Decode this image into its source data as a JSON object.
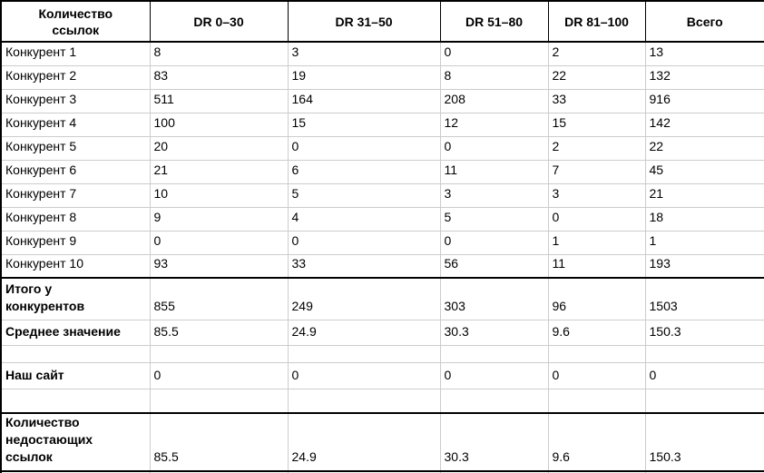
{
  "colors": {
    "grid": "#cccccc",
    "border": "#000000",
    "text": "#000000",
    "background": "#ffffff"
  },
  "table": {
    "header": {
      "first_column_lines": [
        "Количество",
        "ссылок"
      ],
      "columns": [
        "DR 0–30",
        "DR 31–50",
        "DR 51–80",
        "DR 81–100",
        "Всего"
      ]
    },
    "rows": [
      {
        "kind": "data",
        "label_lines": [
          "Конкурент 1"
        ],
        "values": [
          "8",
          "3",
          "0",
          "2",
          "13"
        ]
      },
      {
        "kind": "data",
        "label_lines": [
          "Конкурент 2"
        ],
        "values": [
          "83",
          "19",
          "8",
          "22",
          "132"
        ]
      },
      {
        "kind": "data",
        "label_lines": [
          "Конкурент 3"
        ],
        "values": [
          "511",
          "164",
          "208",
          "33",
          "916"
        ]
      },
      {
        "kind": "data",
        "label_lines": [
          "Конкурент 4"
        ],
        "values": [
          "100",
          "15",
          "12",
          "15",
          "142"
        ]
      },
      {
        "kind": "data",
        "label_lines": [
          "Конкурент 5"
        ],
        "values": [
          "20",
          "0",
          "0",
          "2",
          "22"
        ]
      },
      {
        "kind": "data",
        "label_lines": [
          "Конкурент 6"
        ],
        "values": [
          "21",
          "6",
          "11",
          "7",
          "45"
        ]
      },
      {
        "kind": "data",
        "label_lines": [
          "Конкурент 7"
        ],
        "values": [
          "10",
          "5",
          "3",
          "3",
          "21"
        ]
      },
      {
        "kind": "data",
        "label_lines": [
          "Конкурент 8"
        ],
        "values": [
          "9",
          "4",
          "5",
          "0",
          "18"
        ]
      },
      {
        "kind": "data",
        "label_lines": [
          "Конкурент 9"
        ],
        "values": [
          "0",
          "0",
          "0",
          "1",
          "1"
        ]
      },
      {
        "kind": "data",
        "label_lines": [
          "Конкурент 10"
        ],
        "values": [
          "93",
          "33",
          "56",
          "11",
          "193"
        ]
      },
      {
        "kind": "total",
        "label_lines": [
          "Итого у",
          "конкурентов"
        ],
        "values": [
          "855",
          "249",
          "303",
          "96",
          "1503"
        ]
      },
      {
        "kind": "average",
        "label_lines": [
          "Среднее значение"
        ],
        "values": [
          "85.5",
          "24.9",
          "30.3",
          "9.6",
          "150.3"
        ]
      },
      {
        "kind": "spacer",
        "label_lines": [],
        "values": [
          "",
          "",
          "",
          "",
          ""
        ]
      },
      {
        "kind": "oursite",
        "label_lines": [
          "Наш сайт"
        ],
        "values": [
          "0",
          "0",
          "0",
          "0",
          "0"
        ]
      },
      {
        "kind": "spacer2",
        "label_lines": [],
        "values": [
          "",
          "",
          "",
          "",
          ""
        ]
      },
      {
        "kind": "missing",
        "label_lines": [
          "Количество",
          "недостающих",
          "ссылок"
        ],
        "values": [
          "85.5",
          "24.9",
          "30.3",
          "9.6",
          "150.3"
        ]
      },
      {
        "kind": "partial",
        "label_lines": [],
        "values": [
          "",
          "",
          "",
          "",
          ""
        ]
      }
    ]
  },
  "chart_data": {
    "type": "table",
    "title": "Количество ссылок",
    "columns": [
      "Количество ссылок",
      "DR 0–30",
      "DR 31–50",
      "DR 51–80",
      "DR 81–100",
      "Всего"
    ],
    "rows": [
      {
        "label": "Конкурент 1",
        "dr_0_30": 8,
        "dr_31_50": 3,
        "dr_51_80": 0,
        "dr_81_100": 2,
        "total": 13
      },
      {
        "label": "Конкурент 2",
        "dr_0_30": 83,
        "dr_31_50": 19,
        "dr_51_80": 8,
        "dr_81_100": 22,
        "total": 132
      },
      {
        "label": "Конкурент 3",
        "dr_0_30": 511,
        "dr_31_50": 164,
        "dr_51_80": 208,
        "dr_81_100": 33,
        "total": 916
      },
      {
        "label": "Конкурент 4",
        "dr_0_30": 100,
        "dr_31_50": 15,
        "dr_51_80": 12,
        "dr_81_100": 15,
        "total": 142
      },
      {
        "label": "Конкурент 5",
        "dr_0_30": 20,
        "dr_31_50": 0,
        "dr_51_80": 0,
        "dr_81_100": 2,
        "total": 22
      },
      {
        "label": "Конкурент 6",
        "dr_0_30": 21,
        "dr_31_50": 6,
        "dr_51_80": 11,
        "dr_81_100": 7,
        "total": 45
      },
      {
        "label": "Конкурент 7",
        "dr_0_30": 10,
        "dr_31_50": 5,
        "dr_51_80": 3,
        "dr_81_100": 3,
        "total": 21
      },
      {
        "label": "Конкурент 8",
        "dr_0_30": 9,
        "dr_31_50": 4,
        "dr_51_80": 5,
        "dr_81_100": 0,
        "total": 18
      },
      {
        "label": "Конкурент 9",
        "dr_0_30": 0,
        "dr_31_50": 0,
        "dr_51_80": 0,
        "dr_81_100": 1,
        "total": 1
      },
      {
        "label": "Конкурент 10",
        "dr_0_30": 93,
        "dr_31_50": 33,
        "dr_51_80": 56,
        "dr_81_100": 11,
        "total": 193
      },
      {
        "label": "Итого у конкурентов",
        "dr_0_30": 855,
        "dr_31_50": 249,
        "dr_51_80": 303,
        "dr_81_100": 96,
        "total": 1503
      },
      {
        "label": "Среднее значение",
        "dr_0_30": 85.5,
        "dr_31_50": 24.9,
        "dr_51_80": 30.3,
        "dr_81_100": 9.6,
        "total": 150.3
      },
      {
        "label": "Наш сайт",
        "dr_0_30": 0,
        "dr_31_50": 0,
        "dr_51_80": 0,
        "dr_81_100": 0,
        "total": 0
      },
      {
        "label": "Количество недостающих ссылок",
        "dr_0_30": 85.5,
        "dr_31_50": 24.9,
        "dr_51_80": 30.3,
        "dr_81_100": 9.6,
        "total": 150.3
      }
    ]
  }
}
